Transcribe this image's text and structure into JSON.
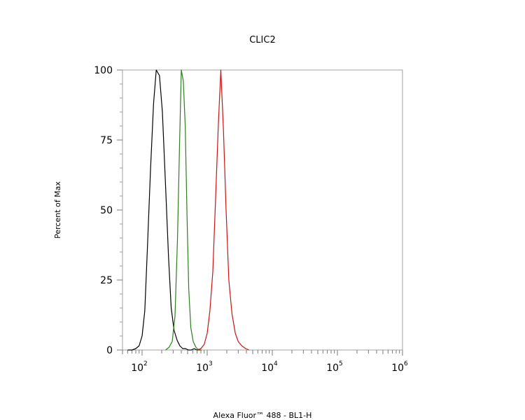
{
  "chart_data": {
    "type": "line",
    "title": "CLIC2",
    "xlabel": "Alexa Fluor™ 488 - BL1-H",
    "ylabel": "Percent of Max",
    "x_scale": "log",
    "xlim": [
      50,
      1000000
    ],
    "ylim": [
      0,
      100
    ],
    "y_ticks": [
      0,
      25,
      50,
      75,
      100
    ],
    "x_ticks": [
      {
        "value": 100,
        "base": "10",
        "exp": "2"
      },
      {
        "value": 1000,
        "base": "10",
        "exp": "3"
      },
      {
        "value": 10000,
        "base": "10",
        "exp": "4"
      },
      {
        "value": 100000,
        "base": "10",
        "exp": "5"
      },
      {
        "value": 1000000,
        "base": "10",
        "exp": "6"
      }
    ],
    "grid": false,
    "legend": "none",
    "series": [
      {
        "color": "#000000",
        "x": [
          60,
          70,
          80,
          90,
          100,
          110,
          120,
          135,
          150,
          165,
          185,
          205,
          230,
          255,
          280,
          310,
          345,
          380,
          420,
          465,
          515,
          570,
          630,
          700,
          780
        ],
        "y": [
          0,
          0,
          0.5,
          1.5,
          5,
          14,
          35,
          65,
          88,
          100,
          98,
          85,
          58,
          33,
          15,
          7,
          3.5,
          1.5,
          0.5,
          0.5,
          0,
          0,
          0.5,
          0,
          0
        ]
      },
      {
        "color": "#2e7d1e",
        "x": [
          230,
          260,
          290,
          320,
          350,
          375,
          400,
          430,
          460,
          490,
          520,
          560,
          610,
          670,
          740,
          820
        ],
        "y": [
          0,
          1,
          3,
          12,
          40,
          72,
          100,
          96,
          80,
          48,
          22,
          8,
          3,
          1,
          0,
          0
        ]
      },
      {
        "color": "#c81414",
        "x": [
          700,
          800,
          900,
          1000,
          1100,
          1220,
          1350,
          1480,
          1620,
          1780,
          1950,
          2150,
          2400,
          2700,
          3000,
          3400,
          3900,
          4400
        ],
        "y": [
          0,
          0.5,
          2,
          6,
          14,
          28,
          55,
          80,
          100,
          78,
          50,
          25,
          13,
          6,
          3,
          1.5,
          0.5,
          0
        ]
      }
    ]
  }
}
